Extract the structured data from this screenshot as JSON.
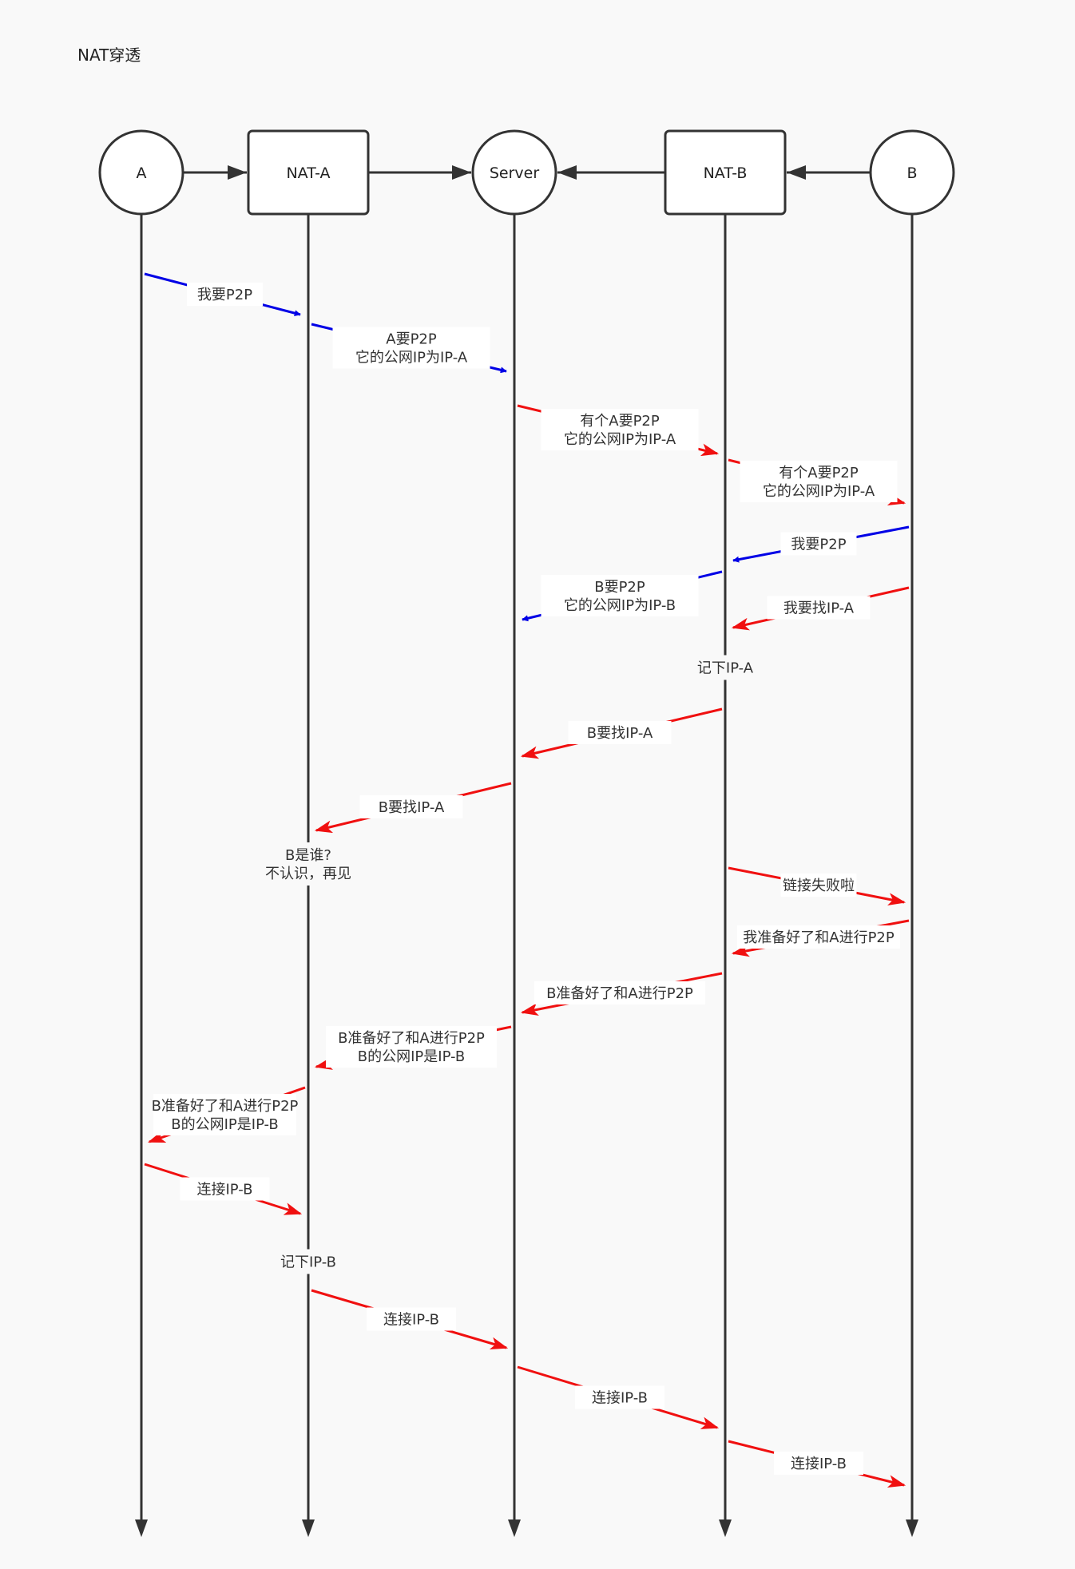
{
  "title": "NAT穿透",
  "participants": [
    {
      "id": "A",
      "label": "A",
      "shape": "circle"
    },
    {
      "id": "NAT-A",
      "label": "NAT-A",
      "shape": "rect"
    },
    {
      "id": "Server",
      "label": "Server",
      "shape": "circle"
    },
    {
      "id": "NAT-B",
      "label": "NAT-B",
      "shape": "rect"
    },
    {
      "id": "B",
      "label": "B",
      "shape": "circle"
    }
  ],
  "links": [
    {
      "from": "A",
      "to": "NAT-A"
    },
    {
      "from": "NAT-A",
      "to": "Server"
    },
    {
      "from": "NAT-B",
      "to": "Server"
    },
    {
      "from": "B",
      "to": "NAT-B"
    }
  ],
  "colors": {
    "blue": "#0000e6",
    "red": "#f01010",
    "line": "#333333"
  },
  "messages": [
    {
      "from": "A",
      "to": "NAT-A",
      "color": "blue",
      "lines": [
        "我要P2P"
      ]
    },
    {
      "from": "NAT-A",
      "to": "Server",
      "color": "blue",
      "lines": [
        "A要P2P",
        "它的公网IP为IP-A"
      ]
    },
    {
      "from": "Server",
      "to": "NAT-B",
      "color": "red",
      "lines": [
        "有个A要P2P",
        "它的公网IP为IP-A"
      ]
    },
    {
      "from": "NAT-B",
      "to": "B",
      "color": "red",
      "lines": [
        "有个A要P2P",
        "它的公网IP为IP-A"
      ]
    },
    {
      "from": "B",
      "to": "NAT-B",
      "color": "blue",
      "lines": [
        "我要P2P"
      ]
    },
    {
      "from": "NAT-B",
      "to": "Server",
      "color": "blue",
      "lines": [
        "B要P2P",
        "它的公网IP为IP-B"
      ]
    },
    {
      "from": "B",
      "to": "NAT-B",
      "color": "red",
      "lines": [
        "我要找IP-A"
      ]
    },
    {
      "from": "NAT-B",
      "to": "Server",
      "color": "red",
      "lines": [
        "B要找IP-A"
      ]
    },
    {
      "from": "Server",
      "to": "NAT-A",
      "color": "red",
      "lines": [
        "B要找IP-A"
      ]
    },
    {
      "from": "NAT-B",
      "to": "B",
      "color": "red",
      "lines": [
        "链接失败啦"
      ]
    },
    {
      "from": "B",
      "to": "NAT-B",
      "color": "red",
      "lines": [
        "我准备好了和A进行P2P"
      ]
    },
    {
      "from": "NAT-B",
      "to": "Server",
      "color": "red",
      "lines": [
        "B准备好了和A进行P2P"
      ]
    },
    {
      "from": "Server",
      "to": "NAT-A",
      "color": "red",
      "lines": [
        "B准备好了和A进行P2P",
        "B的公网IP是IP-B"
      ]
    },
    {
      "from": "NAT-A",
      "to": "A",
      "color": "red",
      "lines": [
        "B准备好了和A进行P2P",
        "B的公网IP是IP-B"
      ]
    },
    {
      "from": "A",
      "to": "NAT-A",
      "color": "red",
      "lines": [
        "连接IP-B"
      ]
    },
    {
      "from": "NAT-A",
      "to": "Server",
      "color": "red",
      "lines": [
        "连接IP-B"
      ]
    },
    {
      "from": "Server",
      "to": "NAT-B",
      "color": "red",
      "lines": [
        "连接IP-B"
      ]
    },
    {
      "from": "NAT-B",
      "to": "B",
      "color": "red",
      "lines": [
        "连接IP-B"
      ]
    }
  ],
  "notes": [
    {
      "at": "NAT-B",
      "lines": [
        "记下IP-A"
      ]
    },
    {
      "at": "NAT-A",
      "lines": [
        "B是谁?",
        "不认识，再见"
      ]
    },
    {
      "at": "NAT-A",
      "lines": [
        "记下IP-B"
      ]
    }
  ]
}
